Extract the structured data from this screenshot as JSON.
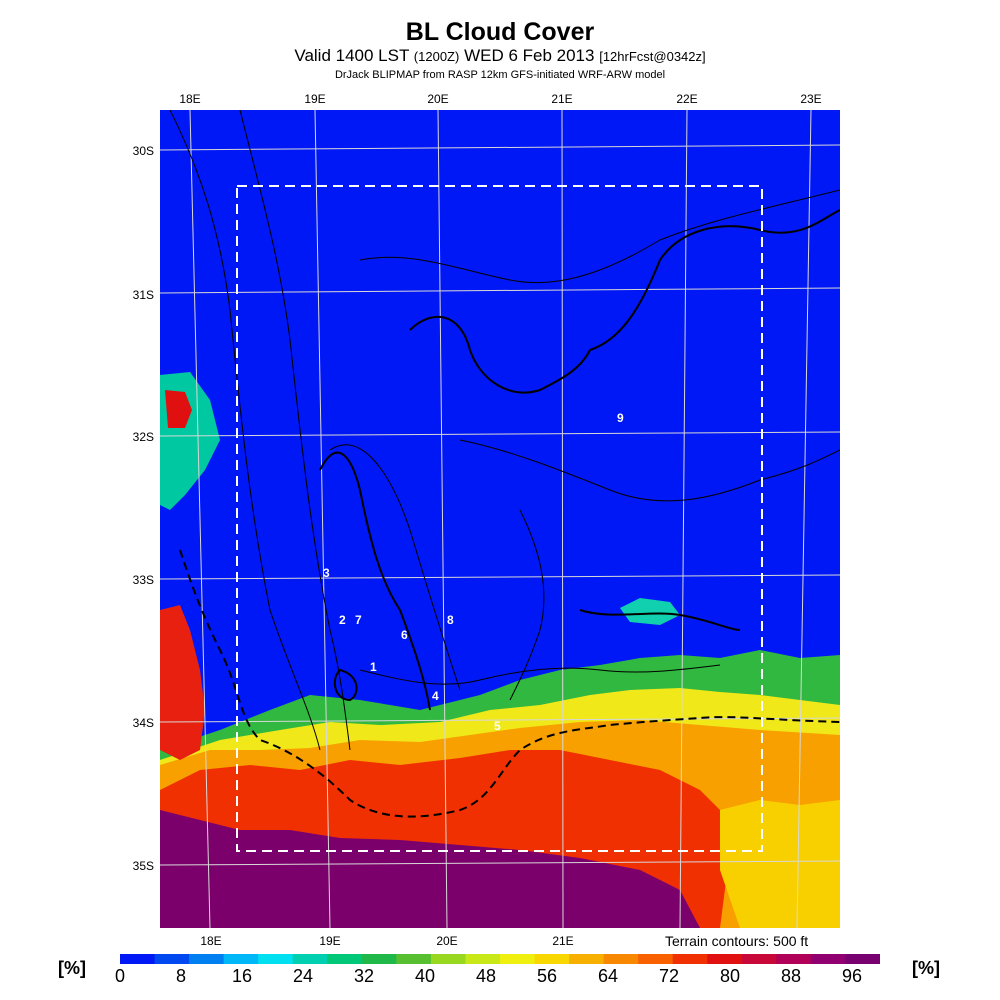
{
  "header": {
    "title": "BL Cloud Cover",
    "valid_prefix": "Valid 1400 LST",
    "utc": "(1200Z)",
    "date": "WED 6 Feb 2013",
    "forecast": "[12hrFcst@0342z]",
    "credit": "DrJack BLIPMAP from RASP 12km GFS-initiated WRF-ARW model"
  },
  "map": {
    "lon_labels": [
      "18E",
      "19E",
      "20E",
      "21E",
      "22E",
      "23E"
    ],
    "lat_labels": [
      "30S",
      "31S",
      "32S",
      "33S",
      "34S",
      "35S"
    ],
    "contour_labels": [
      "9",
      "3",
      "2",
      "7",
      "6",
      "8",
      "1",
      "4",
      "5"
    ],
    "terrain_note": "Terrain contours: 500 ft",
    "forecast_box_style": "dashed white"
  },
  "colorbar": {
    "unit": "[%]",
    "tick_labels": [
      "0",
      "8",
      "16",
      "24",
      "32",
      "40",
      "48",
      "56",
      "64",
      "72",
      "80",
      "88",
      "96"
    ],
    "colors": [
      "#0018f5",
      "#0048f0",
      "#0080f0",
      "#00b8f8",
      "#00e0f0",
      "#00d0b0",
      "#00c878",
      "#20b848",
      "#58c030",
      "#98d820",
      "#c8e818",
      "#f0f010",
      "#f8d800",
      "#f8b000",
      "#f88800",
      "#f86000",
      "#f03000",
      "#e01010",
      "#c80838",
      "#b00058",
      "#900070",
      "#780070"
    ]
  },
  "legend_colors": {
    "background": "#0018f5",
    "grid": "#d8d8d8",
    "box": "#ffffff",
    "contour": "#000000"
  }
}
